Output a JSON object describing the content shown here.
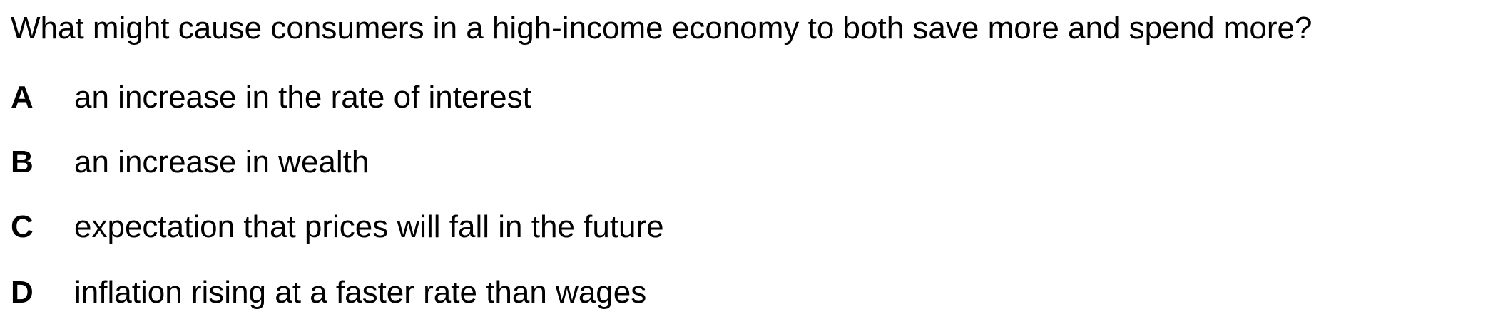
{
  "question": {
    "text": "What might cause consumers in a high-income economy to both save more and spend more?"
  },
  "options": [
    {
      "letter": "A",
      "text": "an increase in the rate of interest"
    },
    {
      "letter": "B",
      "text": "an increase in wealth"
    },
    {
      "letter": "C",
      "text": "expectation that prices will fall in the future"
    },
    {
      "letter": "D",
      "text": "inflation rising at a faster rate than wages"
    }
  ]
}
